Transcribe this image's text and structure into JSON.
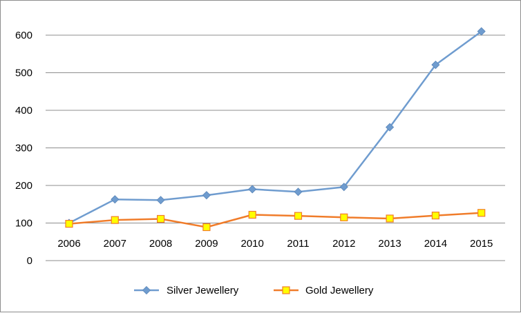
{
  "chart_data": {
    "type": "line",
    "categories": [
      "2006",
      "2007",
      "2008",
      "2009",
      "2010",
      "2011",
      "2012",
      "2013",
      "2014",
      "2015"
    ],
    "series": [
      {
        "name": "Silver Jewellery",
        "values": [
          100,
          163,
          161,
          174,
          190,
          183,
          196,
          355,
          521,
          610
        ],
        "color": "#6f9ccf",
        "marker": "diamond"
      },
      {
        "name": "Gold Jewellery",
        "values": [
          98,
          108,
          111,
          89,
          122,
          119,
          115,
          112,
          120,
          127
        ],
        "color": "#f07c2a",
        "marker": "square",
        "marker_fill": "#ffff00"
      }
    ],
    "ylim": [
      0,
      600
    ],
    "yticks": [
      0,
      100,
      200,
      300,
      400,
      500,
      600
    ],
    "grid": true,
    "legend_position": "bottom",
    "title": "",
    "xlabel": "",
    "ylabel": ""
  }
}
